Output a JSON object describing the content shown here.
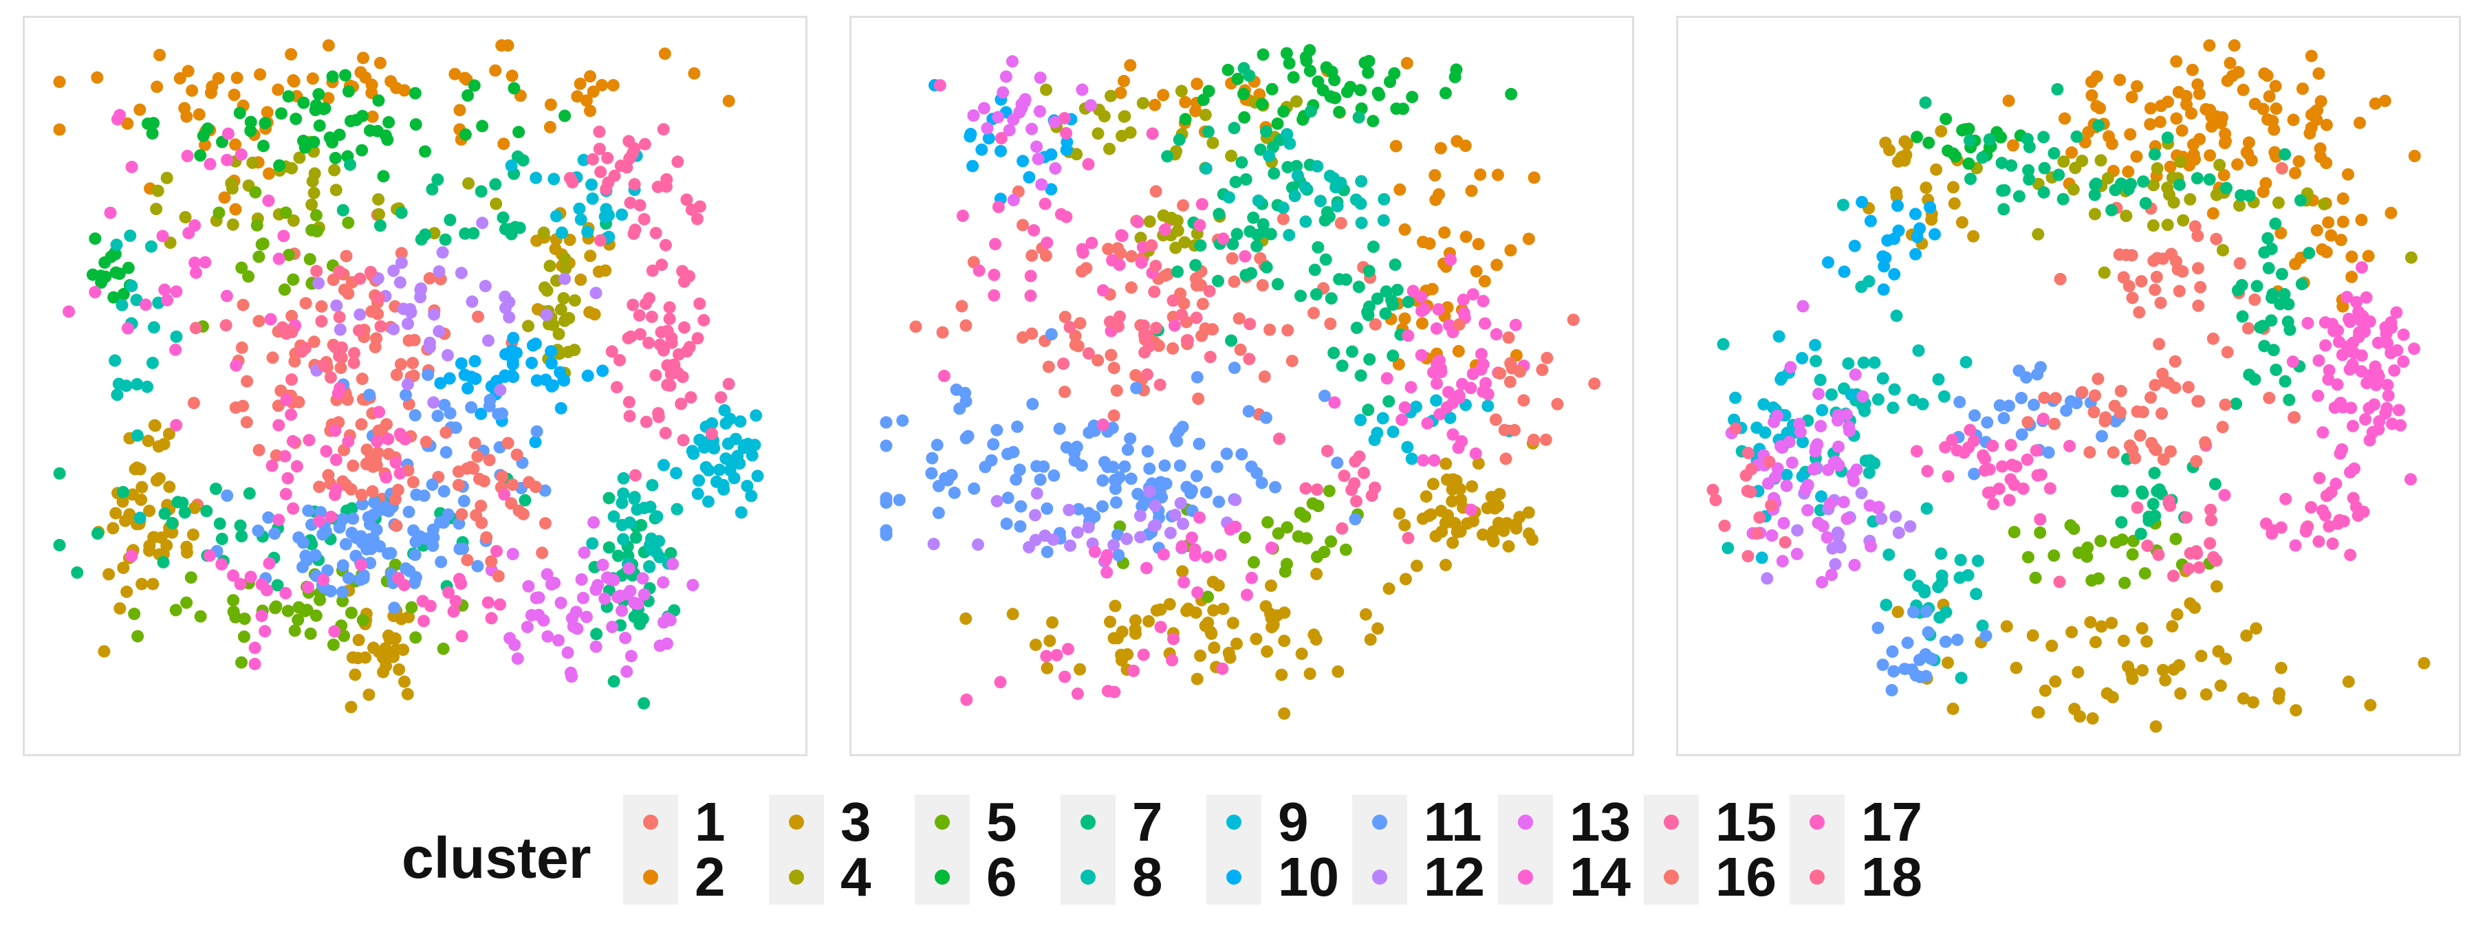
{
  "chart_data": [
    {
      "type": "scatter",
      "panel": 1,
      "x_range": [
        0,
        100
      ],
      "y_range": [
        0,
        100
      ],
      "grid": false,
      "legend": "shared-bottom",
      "clusters": [
        {
          "name": "1",
          "regions": [
            {
              "x": 40,
              "y": 55,
              "sx": 10,
              "sy": 8,
              "n": 90
            }
          ]
        },
        {
          "name": "2",
          "regions": [
            {
              "x": 50,
              "y": 93,
              "sx": 22,
              "sy": 3,
              "n": 60
            },
            {
              "x": 20,
              "y": 88,
              "sx": 6,
              "sy": 4,
              "n": 20
            }
          ]
        },
        {
          "name": "3",
          "regions": [
            {
              "x": 13,
              "y": 29,
              "sx": 3,
              "sy": 6,
              "n": 55
            },
            {
              "x": 45,
              "y": 12,
              "sx": 3,
              "sy": 4,
              "n": 30
            },
            {
              "x": 72,
              "y": 66,
              "sx": 3,
              "sy": 4,
              "n": 20
            }
          ]
        },
        {
          "name": "4",
          "regions": [
            {
              "x": 35,
              "y": 78,
              "sx": 12,
              "sy": 4,
              "n": 35
            },
            {
              "x": 70,
              "y": 62,
              "sx": 3,
              "sy": 5,
              "n": 25
            }
          ]
        },
        {
          "name": "5",
          "regions": [
            {
              "x": 35,
              "y": 18,
              "sx": 10,
              "sy": 3,
              "n": 45
            },
            {
              "x": 30,
              "y": 70,
              "sx": 5,
              "sy": 5,
              "n": 20
            }
          ]
        },
        {
          "name": "6",
          "regions": [
            {
              "x": 40,
              "y": 88,
              "sx": 12,
              "sy": 3,
              "n": 55
            },
            {
              "x": 8,
              "y": 66,
              "sx": 2,
              "sy": 3,
              "n": 15
            }
          ]
        },
        {
          "name": "7",
          "regions": [
            {
              "x": 30,
              "y": 30,
              "sx": 15,
              "sy": 4,
              "n": 45
            },
            {
              "x": 80,
              "y": 22,
              "sx": 3,
              "sy": 6,
              "n": 35
            },
            {
              "x": 55,
              "y": 75,
              "sx": 10,
              "sy": 4,
              "n": 25
            }
          ]
        },
        {
          "name": "8",
          "regions": [
            {
              "x": 82,
              "y": 30,
              "sx": 3,
              "sy": 5,
              "n": 25
            },
            {
              "x": 12,
              "y": 55,
              "sx": 3,
              "sy": 8,
              "n": 20
            }
          ]
        },
        {
          "name": "9",
          "regions": [
            {
              "x": 92,
              "y": 40,
              "sx": 3,
              "sy": 4,
              "n": 45
            },
            {
              "x": 75,
              "y": 78,
              "sx": 4,
              "sy": 4,
              "n": 20
            }
          ]
        },
        {
          "name": "10",
          "regions": [
            {
              "x": 65,
              "y": 52,
              "sx": 6,
              "sy": 3,
              "n": 40
            }
          ]
        },
        {
          "name": "11",
          "regions": [
            {
              "x": 45,
              "y": 28,
              "sx": 7,
              "sy": 4,
              "n": 90
            },
            {
              "x": 55,
              "y": 42,
              "sx": 6,
              "sy": 5,
              "n": 30
            }
          ]
        },
        {
          "name": "12",
          "regions": [
            {
              "x": 55,
              "y": 62,
              "sx": 8,
              "sy": 6,
              "n": 40
            }
          ]
        },
        {
          "name": "13",
          "regions": [
            {
              "x": 75,
              "y": 18,
              "sx": 7,
              "sy": 5,
              "n": 60
            }
          ]
        },
        {
          "name": "14",
          "regions": [
            {
              "x": 20,
              "y": 70,
              "sx": 8,
              "sy": 10,
              "n": 30
            },
            {
              "x": 30,
              "y": 22,
              "sx": 7,
              "sy": 4,
              "n": 20
            }
          ]
        },
        {
          "name": "15",
          "regions": [
            {
              "x": 85,
              "y": 55,
              "sx": 4,
              "sy": 8,
              "n": 60
            },
            {
              "x": 80,
              "y": 80,
              "sx": 4,
              "sy": 4,
              "n": 30
            }
          ]
        },
        {
          "name": "16",
          "regions": [
            {
              "x": 45,
              "y": 38,
              "sx": 8,
              "sy": 4,
              "n": 40
            },
            {
              "x": 62,
              "y": 33,
              "sx": 4,
              "sy": 5,
              "n": 25
            }
          ]
        },
        {
          "name": "17",
          "regions": [
            {
              "x": 38,
              "y": 42,
              "sx": 10,
              "sy": 5,
              "n": 30
            },
            {
              "x": 55,
              "y": 20,
              "sx": 4,
              "sy": 4,
              "n": 15
            }
          ]
        },
        {
          "name": "18",
          "regions": [
            {
              "x": 35,
              "y": 58,
              "sx": 8,
              "sy": 5,
              "n": 25
            }
          ]
        }
      ]
    },
    {
      "type": "scatter",
      "panel": 2,
      "x_range": [
        0,
        100
      ],
      "y_range": [
        0,
        100
      ],
      "grid": false,
      "legend": "shared-bottom",
      "clusters": [
        {
          "name": "1",
          "regions": [
            {
              "x": 40,
              "y": 62,
              "sx": 12,
              "sy": 7,
              "n": 90
            }
          ]
        },
        {
          "name": "2",
          "regions": [
            {
              "x": 78,
              "y": 68,
              "sx": 5,
              "sy": 9,
              "n": 45
            },
            {
              "x": 45,
              "y": 92,
              "sx": 10,
              "sy": 3,
              "n": 20
            }
          ]
        },
        {
          "name": "3",
          "regions": [
            {
              "x": 45,
              "y": 15,
              "sx": 13,
              "sy": 4,
              "n": 70
            },
            {
              "x": 80,
              "y": 32,
              "sx": 5,
              "sy": 4,
              "n": 55
            }
          ]
        },
        {
          "name": "4",
          "regions": [
            {
              "x": 40,
              "y": 88,
              "sx": 10,
              "sy": 4,
              "n": 30
            },
            {
              "x": 42,
              "y": 72,
              "sx": 5,
              "sy": 3,
              "n": 15
            }
          ]
        },
        {
          "name": "5",
          "regions": [
            {
              "x": 55,
              "y": 28,
              "sx": 8,
              "sy": 3,
              "n": 25
            }
          ]
        },
        {
          "name": "6",
          "regions": [
            {
              "x": 62,
              "y": 93,
              "sx": 8,
              "sy": 3,
              "n": 50
            }
          ]
        },
        {
          "name": "7",
          "regions": [
            {
              "x": 55,
              "y": 75,
              "sx": 8,
              "sy": 8,
              "n": 60
            },
            {
              "x": 68,
              "y": 60,
              "sx": 3,
              "sy": 6,
              "n": 25
            }
          ]
        },
        {
          "name": "8",
          "regions": [
            {
              "x": 60,
              "y": 78,
              "sx": 6,
              "sy": 5,
              "n": 25
            }
          ]
        },
        {
          "name": "9",
          "regions": [
            {
              "x": 75,
              "y": 45,
              "sx": 6,
              "sy": 3,
              "n": 15
            }
          ]
        },
        {
          "name": "10",
          "regions": [
            {
              "x": 20,
              "y": 85,
              "sx": 6,
              "sy": 4,
              "n": 20
            }
          ]
        },
        {
          "name": "11",
          "regions": [
            {
              "x": 25,
              "y": 38,
              "sx": 14,
              "sy": 6,
              "n": 100
            },
            {
              "x": 40,
              "y": 35,
              "sx": 8,
              "sy": 3,
              "n": 30
            }
          ]
        },
        {
          "name": "12",
          "regions": [
            {
              "x": 30,
              "y": 30,
              "sx": 10,
              "sy": 3,
              "n": 30
            }
          ]
        },
        {
          "name": "13",
          "regions": [
            {
              "x": 20,
              "y": 88,
              "sx": 4,
              "sy": 4,
              "n": 25
            }
          ]
        },
        {
          "name": "14",
          "regions": [
            {
              "x": 80,
              "y": 52,
              "sx": 5,
              "sy": 7,
              "n": 55
            },
            {
              "x": 40,
              "y": 25,
              "sx": 6,
              "sy": 3,
              "n": 20
            }
          ]
        },
        {
          "name": "15",
          "regions": [
            {
              "x": 65,
              "y": 35,
              "sx": 4,
              "sy": 4,
              "n": 15
            }
          ]
        },
        {
          "name": "16",
          "regions": [
            {
              "x": 88,
              "y": 48,
              "sx": 4,
              "sy": 6,
              "n": 20
            }
          ]
        },
        {
          "name": "17",
          "regions": [
            {
              "x": 30,
              "y": 70,
              "sx": 10,
              "sy": 10,
              "n": 40
            },
            {
              "x": 30,
              "y": 10,
              "sx": 10,
              "sy": 3,
              "n": 15
            }
          ]
        },
        {
          "name": "18",
          "regions": [
            {
              "x": 38,
              "y": 58,
              "sx": 8,
              "sy": 5,
              "n": 25
            }
          ]
        }
      ]
    },
    {
      "type": "scatter",
      "panel": 3,
      "x_range": [
        0,
        100
      ],
      "y_range": [
        0,
        100
      ],
      "grid": false,
      "legend": "shared-bottom",
      "clusters": [
        {
          "name": "1",
          "regions": [
            {
              "x": 65,
              "y": 65,
              "sx": 6,
              "sy": 7,
              "n": 40
            }
          ]
        },
        {
          "name": "2",
          "regions": [
            {
              "x": 70,
              "y": 88,
              "sx": 13,
              "sy": 5,
              "n": 110
            },
            {
              "x": 85,
              "y": 72,
              "sx": 4,
              "sy": 6,
              "n": 25
            }
          ]
        },
        {
          "name": "3",
          "regions": [
            {
              "x": 60,
              "y": 10,
              "sx": 15,
              "sy": 5,
              "n": 60
            },
            {
              "x": 30,
              "y": 78,
              "sx": 5,
              "sy": 5,
              "n": 25
            }
          ]
        },
        {
          "name": "4",
          "regions": [
            {
              "x": 65,
              "y": 78,
              "sx": 10,
              "sy": 4,
              "n": 40
            }
          ]
        },
        {
          "name": "5",
          "regions": [
            {
              "x": 55,
              "y": 25,
              "sx": 8,
              "sy": 3,
              "n": 25
            }
          ]
        },
        {
          "name": "6",
          "regions": [
            {
              "x": 37,
              "y": 85,
              "sx": 3,
              "sy": 3,
              "n": 20
            }
          ]
        },
        {
          "name": "7",
          "regions": [
            {
              "x": 50,
              "y": 80,
              "sx": 10,
              "sy": 4,
              "n": 40
            },
            {
              "x": 78,
              "y": 62,
              "sx": 3,
              "sy": 8,
              "n": 35
            },
            {
              "x": 60,
              "y": 32,
              "sx": 5,
              "sy": 4,
              "n": 20
            }
          ]
        },
        {
          "name": "8",
          "regions": [
            {
              "x": 20,
              "y": 48,
              "sx": 6,
              "sy": 10,
              "n": 45
            },
            {
              "x": 32,
              "y": 20,
              "sx": 4,
              "sy": 6,
              "n": 30
            }
          ]
        },
        {
          "name": "9",
          "regions": [
            {
              "x": 10,
              "y": 45,
              "sx": 4,
              "sy": 6,
              "n": 35
            }
          ]
        },
        {
          "name": "10",
          "regions": [
            {
              "x": 25,
              "y": 70,
              "sx": 4,
              "sy": 4,
              "n": 20
            }
          ]
        },
        {
          "name": "11",
          "regions": [
            {
              "x": 45,
              "y": 45,
              "sx": 5,
              "sy": 4,
              "n": 30
            },
            {
              "x": 30,
              "y": 12,
              "sx": 3,
              "sy": 3,
              "n": 20
            }
          ]
        },
        {
          "name": "12",
          "regions": [
            {
              "x": 22,
              "y": 30,
              "sx": 4,
              "sy": 4,
              "n": 20
            }
          ]
        },
        {
          "name": "13",
          "regions": [
            {
              "x": 15,
              "y": 38,
              "sx": 6,
              "sy": 7,
              "n": 65
            }
          ]
        },
        {
          "name": "14",
          "regions": [
            {
              "x": 90,
              "y": 50,
              "sx": 4,
              "sy": 8,
              "n": 90
            }
          ]
        },
        {
          "name": "15",
          "regions": [
            {
              "x": 65,
              "y": 28,
              "sx": 6,
              "sy": 4,
              "n": 20
            }
          ]
        },
        {
          "name": "16",
          "regions": [
            {
              "x": 60,
              "y": 45,
              "sx": 8,
              "sy": 4,
              "n": 40
            }
          ]
        },
        {
          "name": "17",
          "regions": [
            {
              "x": 40,
              "y": 38,
              "sx": 5,
              "sy": 3,
              "n": 35
            },
            {
              "x": 85,
              "y": 32,
              "sx": 4,
              "sy": 4,
              "n": 25
            }
          ]
        },
        {
          "name": "18",
          "regions": [
            {
              "x": 5,
              "y": 35,
              "sx": 3,
              "sy": 6,
              "n": 15
            }
          ]
        }
      ]
    }
  ],
  "legend": {
    "title": "cluster",
    "items": [
      {
        "label": "1",
        "color": "#F8766D"
      },
      {
        "label": "2",
        "color": "#E58700"
      },
      {
        "label": "3",
        "color": "#C99800"
      },
      {
        "label": "4",
        "color": "#A3A500"
      },
      {
        "label": "5",
        "color": "#6BB100"
      },
      {
        "label": "6",
        "color": "#00BA38"
      },
      {
        "label": "7",
        "color": "#00BF7D"
      },
      {
        "label": "8",
        "color": "#00C0AF"
      },
      {
        "label": "9",
        "color": "#00BCD8"
      },
      {
        "label": "10",
        "color": "#00B0F6"
      },
      {
        "label": "11",
        "color": "#619CFF"
      },
      {
        "label": "12",
        "color": "#B983FF"
      },
      {
        "label": "13",
        "color": "#E76BF3"
      },
      {
        "label": "14",
        "color": "#FD61D1"
      },
      {
        "label": "15",
        "color": "#FF67A4"
      },
      {
        "label": "16",
        "color": "#F8766D"
      },
      {
        "label": "17",
        "color": "#FF61C3"
      },
      {
        "label": "18",
        "color": "#FF6C91"
      }
    ]
  }
}
